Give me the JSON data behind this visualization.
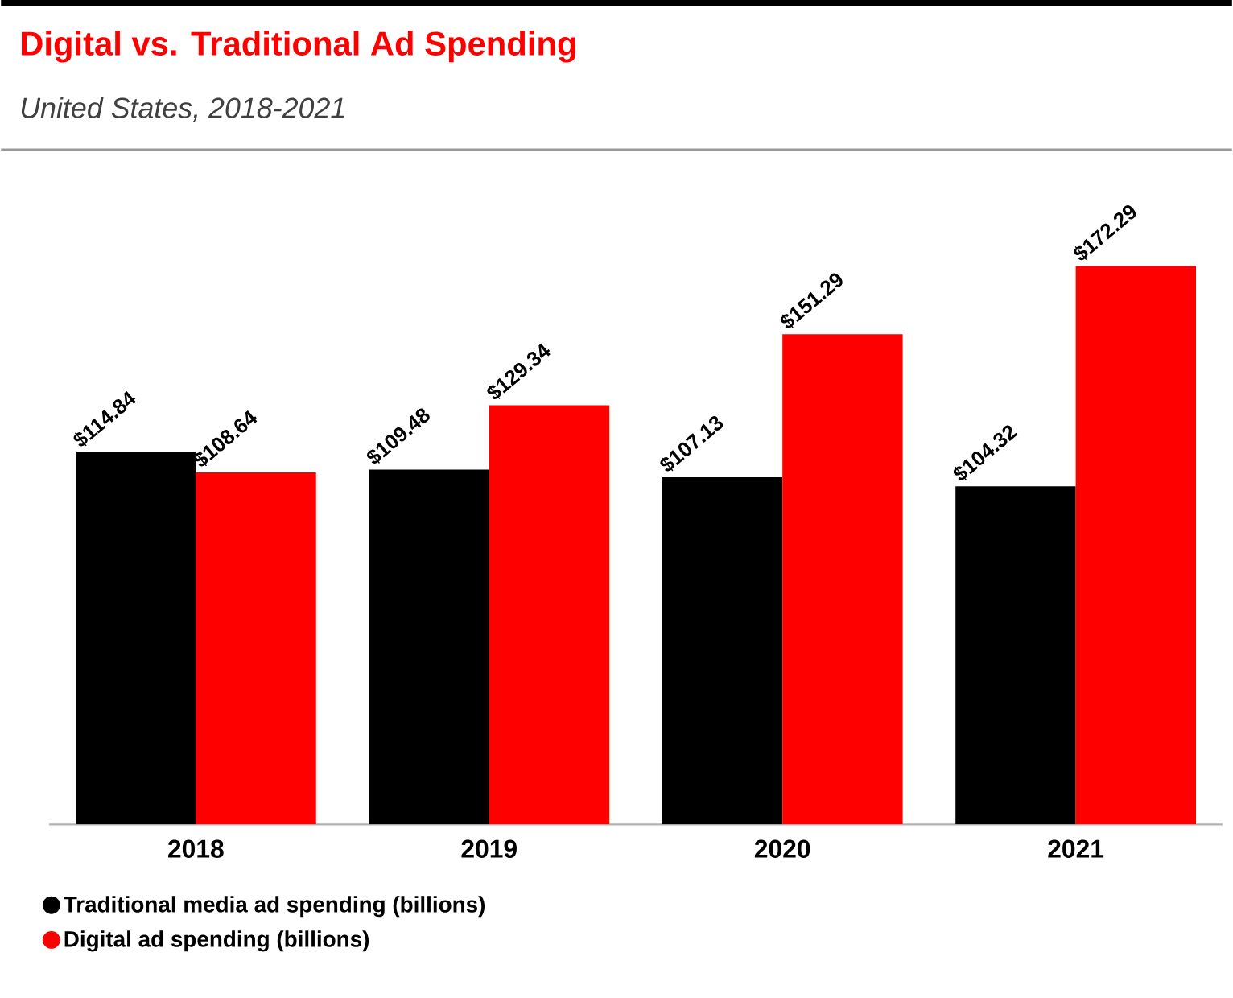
{
  "chart_data": {
    "type": "bar",
    "title": "Digital vs. Traditional Ad Spending",
    "subtitle": "United States, 2018-2021",
    "categories": [
      "2018",
      "2019",
      "2020",
      "2021"
    ],
    "series": [
      {
        "name": "Traditional media ad spending (billions)",
        "color": "#000000",
        "values": [
          114.84,
          109.48,
          107.13,
          104.32
        ],
        "value_labels": [
          "$114.84",
          "$109.48",
          "$107.13",
          "$104.32"
        ]
      },
      {
        "name": "Digital ad spending (billions)",
        "color": "#ff0000",
        "values": [
          108.64,
          129.34,
          151.29,
          172.29
        ],
        "value_labels": [
          "$108.64",
          "$129.34",
          "$151.29",
          "$172.29"
        ]
      }
    ],
    "legend": "bottom"
  }
}
